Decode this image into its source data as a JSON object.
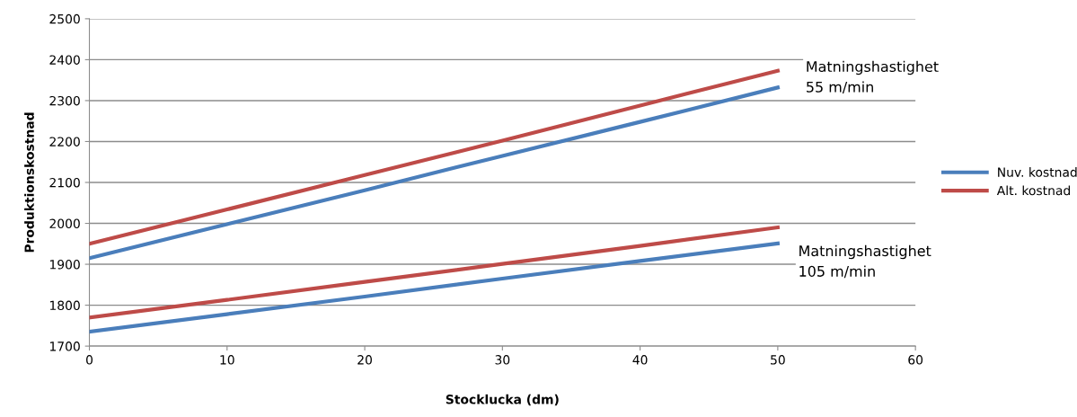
{
  "chart_data": {
    "type": "line",
    "xlabel": "Stocklucka (dm)",
    "ylabel": "Produktionskostnad",
    "x": [
      0,
      10,
      20,
      30,
      40,
      50
    ],
    "series": [
      {
        "name": "Nuv. kostnad",
        "color": "#4a7ebb",
        "values": [
          1915,
          1998,
          2081,
          2165,
          2248,
          2332
        ]
      },
      {
        "name": "Alt. kostnad",
        "color": "#be4b48",
        "values": [
          1950,
          2034,
          2118,
          2202,
          2288,
          2373
        ]
      },
      {
        "color": "#4a7ebb",
        "values": [
          1735,
          1778,
          1821,
          1865,
          1908,
          1951
        ]
      },
      {
        "color": "#be4b48",
        "values": [
          1770,
          1813,
          1857,
          1901,
          1945,
          1990
        ]
      }
    ],
    "xlim": [
      0,
      60
    ],
    "xticks": [
      0,
      10,
      20,
      30,
      40,
      50,
      60
    ],
    "ylim": [
      1700,
      2500
    ],
    "yticks": [
      1700,
      1800,
      1900,
      2000,
      2100,
      2200,
      2300,
      2400,
      2500
    ],
    "grid": "y",
    "legend": "right",
    "marker": "none",
    "line_style": "solid",
    "annotations": [
      "Matningshastighet\n55 m/min",
      "Matningshastighet\n105 m/min"
    ]
  }
}
